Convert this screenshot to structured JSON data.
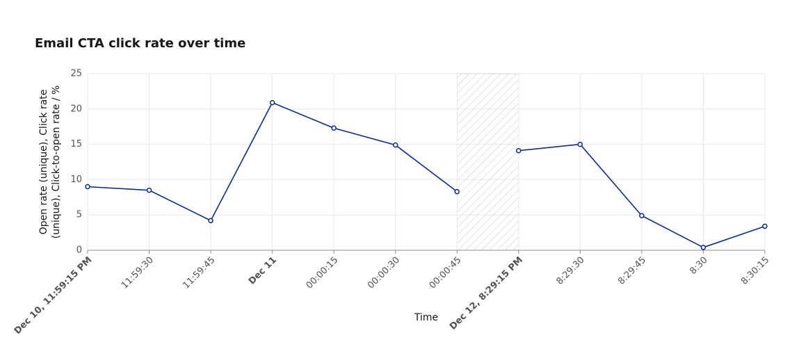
{
  "chart_data": {
    "type": "line",
    "title": "Email CTA click rate over time",
    "x_label": "Time",
    "y_label": [
      "Open rate (unique), Click rate",
      "(unique), Click-to-open rate / %"
    ],
    "categories": [
      "Dec 10, 11:59:15 PM",
      "11:59:30",
      "11:59:45",
      "Dec 11",
      "00:00:15",
      "00:00:30",
      "00:00:45",
      "Dec 12, 8:29:15 PM",
      "8:29:30",
      "8:29:45",
      "8:30",
      "8:30:15"
    ],
    "bold_ticks": [
      0,
      3,
      7
    ],
    "x_break": [
      6,
      7
    ],
    "series": [
      {
        "name": "Click rate",
        "color": "#0b2a8f",
        "values": [
          9.0,
          8.5,
          4.2,
          20.9,
          17.3,
          14.9,
          8.3,
          14.1,
          15.0,
          4.9,
          0.4,
          3.4
        ]
      }
    ],
    "ylim": [
      0,
      25
    ],
    "yticks": [
      0,
      5,
      10,
      15,
      20,
      25
    ],
    "grid": true
  }
}
